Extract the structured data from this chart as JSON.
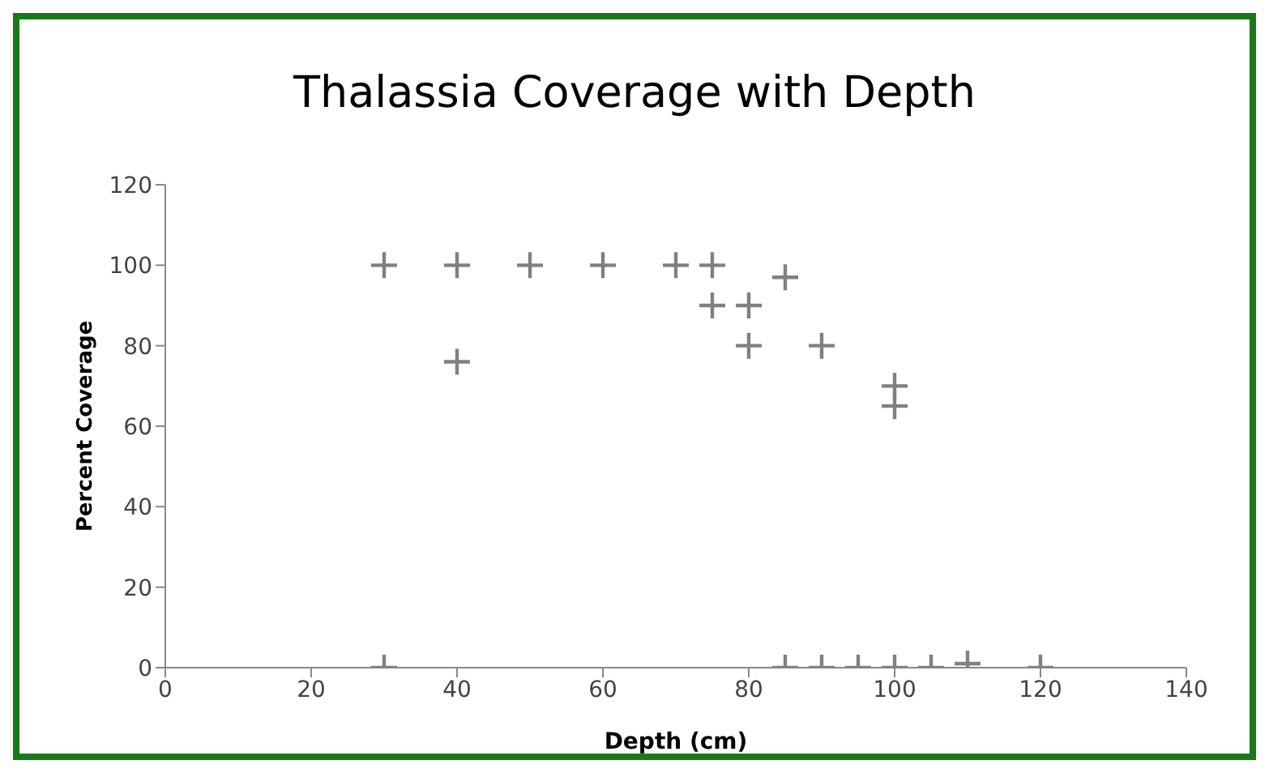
{
  "chart_data": {
    "type": "scatter",
    "title": "Thalassia Coverage with Depth",
    "xlabel": "Depth (cm)",
    "ylabel": "Percent Coverage",
    "x": [
      30,
      40,
      40,
      50,
      60,
      70,
      75,
      75,
      80,
      80,
      85,
      90,
      100,
      100,
      30,
      85,
      90,
      95,
      100,
      105,
      110,
      120
    ],
    "values": [
      100,
      100,
      76,
      100,
      100,
      100,
      100,
      90,
      90,
      80,
      97,
      80,
      70,
      65,
      0,
      0,
      0,
      0,
      0,
      0,
      1,
      0
    ],
    "color": "#808080",
    "marker": "cross",
    "xlim": [
      0,
      140
    ],
    "xticks": [
      0,
      20,
      40,
      60,
      80,
      100,
      120,
      140
    ],
    "ylim": [
      0,
      120
    ],
    "yticks": [
      0,
      20,
      40,
      60,
      80,
      100,
      120
    ],
    "grid": false
  }
}
